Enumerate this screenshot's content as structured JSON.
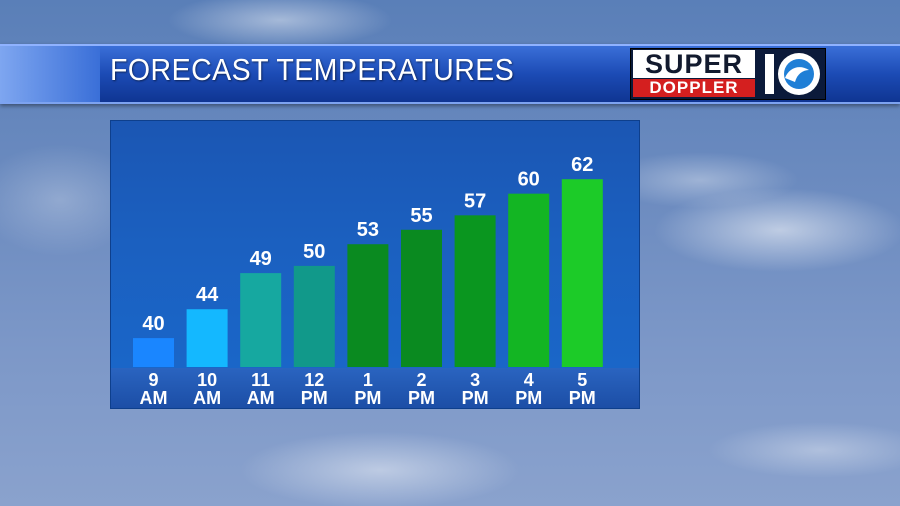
{
  "header": {
    "title": "FORECAST TEMPERATURES",
    "logo_top": "SUPER",
    "logo_bottom": "DOPPLER",
    "logo_number": "10"
  },
  "colors": {
    "title_bar": "#1c4bb5",
    "logo_red": "#d41f1f"
  },
  "chart_data": {
    "type": "bar",
    "title": "FORECAST TEMPERATURES",
    "categories": [
      [
        "9",
        "AM"
      ],
      [
        "10",
        "AM"
      ],
      [
        "11",
        "AM"
      ],
      [
        "12",
        "PM"
      ],
      [
        "1",
        "PM"
      ],
      [
        "2",
        "PM"
      ],
      [
        "3",
        "PM"
      ],
      [
        "4",
        "PM"
      ],
      [
        "5",
        "PM"
      ]
    ],
    "values": [
      40,
      44,
      49,
      50,
      53,
      55,
      57,
      60,
      62
    ],
    "bar_colors": [
      "#1a86ff",
      "#14b8ff",
      "#16a8a0",
      "#11998a",
      "#0a8a20",
      "#0a8a20",
      "#0a961f",
      "#13b523",
      "#1ccb28"
    ],
    "ylim": [
      36,
      63
    ],
    "grid": false,
    "data_labels": true
  }
}
